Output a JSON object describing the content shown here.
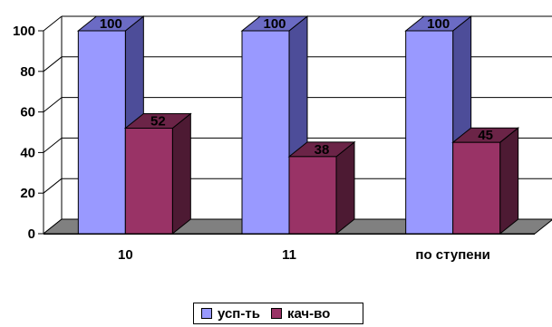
{
  "chart_data": {
    "type": "bar",
    "categories": [
      "10",
      "11",
      "по ступени"
    ],
    "series": [
      {
        "name": "усп-ть",
        "values": [
          100,
          100,
          100
        ],
        "color": "#9999ff",
        "side_color": "#4d4d99",
        "top_color": "#6b6bc4"
      },
      {
        "name": "кач-во",
        "values": [
          52,
          38,
          45
        ],
        "color": "#993366",
        "side_color": "#4d1a33",
        "top_color": "#6b2447"
      }
    ],
    "y_ticks": [
      "0",
      "20",
      "40",
      "60",
      "80",
      "100"
    ],
    "ylim": [
      0,
      100
    ],
    "grid": true,
    "legend_position": "bottom-center",
    "floor_color": "#808080"
  }
}
